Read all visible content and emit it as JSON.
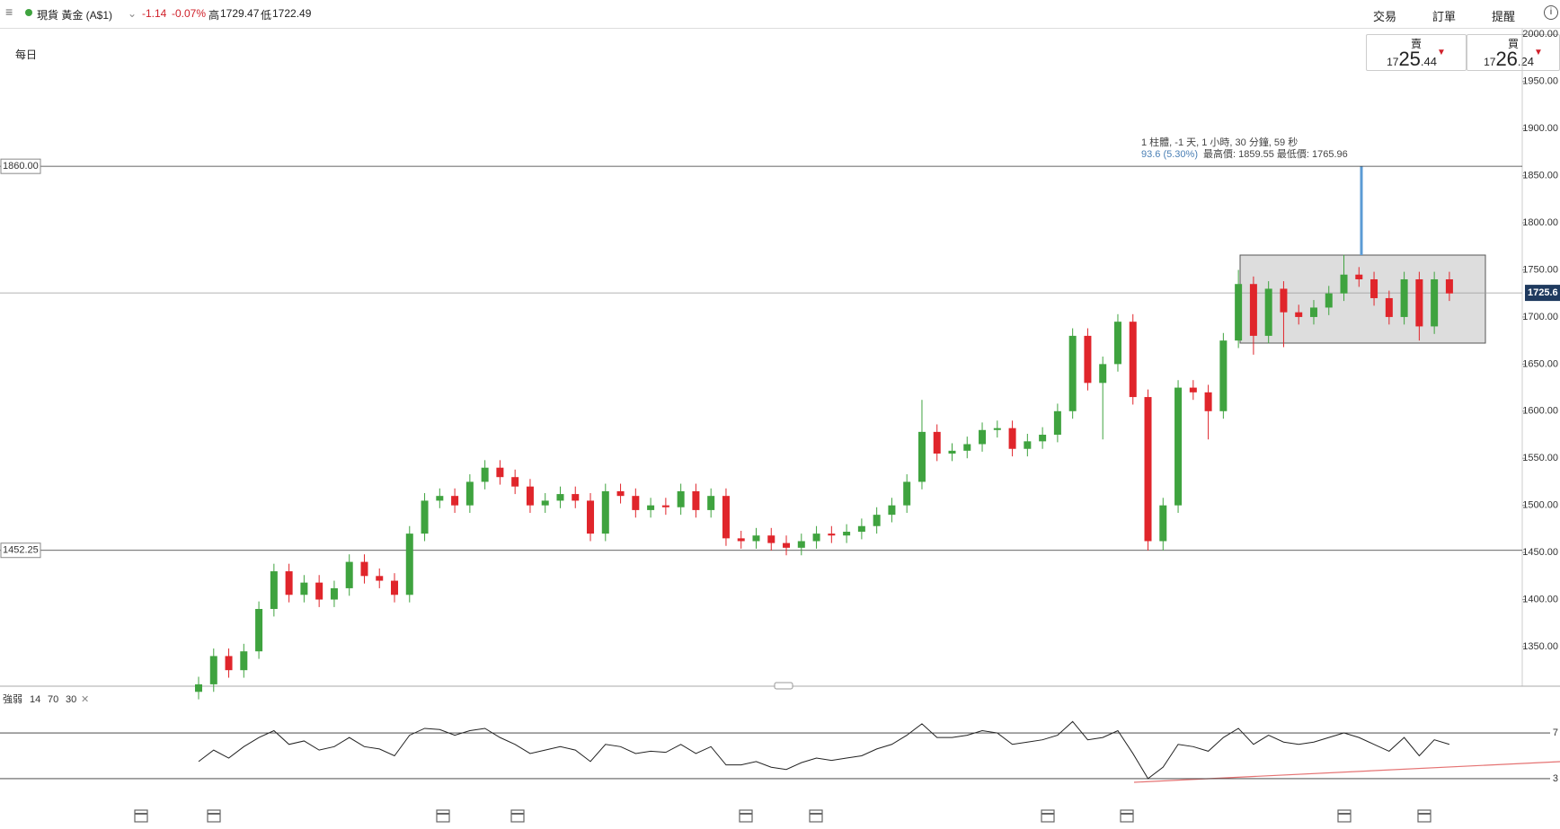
{
  "header": {
    "symbol": "現貨 黃金 (A$1)",
    "change": "-1.14",
    "change_pct": "-0.07%",
    "high_label": "高",
    "high": "1729.47",
    "low_label": "低",
    "low": "1722.49",
    "menu": [
      "交易",
      "訂單",
      "提醒"
    ]
  },
  "timeframe": "每日",
  "sell": {
    "label": "賣",
    "prefix": "17",
    "big": "25",
    "small": ".44"
  },
  "buy": {
    "label": "買",
    "prefix": "17",
    "big": "26",
    "small": ".24"
  },
  "chart_data": [
    {
      "type": "candlestick",
      "up_color": "#3fa33f",
      "down_color": "#e0252b",
      "open": [
        1302,
        1310,
        1340,
        1325,
        1345,
        1390,
        1430,
        1405,
        1418,
        1400,
        1412,
        1440,
        1425,
        1420,
        1405,
        1470,
        1505,
        1510,
        1500,
        1525,
        1540,
        1530,
        1520,
        1500,
        1505,
        1512,
        1505,
        1470,
        1515,
        1510,
        1495,
        1500,
        1498,
        1515,
        1495,
        1510,
        1465,
        1462,
        1468,
        1460,
        1455,
        1462,
        1470,
        1468,
        1472,
        1478,
        1490,
        1500,
        1525,
        1578,
        1555,
        1558,
        1565,
        1580,
        1582,
        1560,
        1568,
        1575,
        1600,
        1680,
        1630,
        1650,
        1695,
        1615,
        1462,
        1500,
        1625,
        1620,
        1600,
        1675,
        1735,
        1680,
        1730,
        1705,
        1700,
        1710,
        1725,
        1745,
        1740,
        1720,
        1700,
        1740,
        1690,
        1740
      ],
      "high": [
        1318,
        1348,
        1348,
        1353,
        1398,
        1438,
        1438,
        1426,
        1426,
        1420,
        1448,
        1448,
        1433,
        1428,
        1478,
        1513,
        1518,
        1518,
        1533,
        1548,
        1548,
        1538,
        1528,
        1513,
        1520,
        1520,
        1513,
        1523,
        1523,
        1518,
        1508,
        1508,
        1523,
        1523,
        1518,
        1518,
        1473,
        1476,
        1476,
        1468,
        1470,
        1478,
        1478,
        1480,
        1486,
        1498,
        1508,
        1533,
        1612,
        1586,
        1566,
        1573,
        1588,
        1590,
        1590,
        1576,
        1583,
        1608,
        1688,
        1688,
        1658,
        1703,
        1703,
        1623,
        1508,
        1633,
        1633,
        1628,
        1683,
        1750,
        1743,
        1738,
        1738,
        1713,
        1718,
        1733,
        1766,
        1753,
        1748,
        1728,
        1748,
        1748,
        1748,
        1748
      ],
      "low": [
        1294,
        1302,
        1317,
        1317,
        1337,
        1382,
        1397,
        1397,
        1392,
        1392,
        1404,
        1417,
        1412,
        1397,
        1397,
        1462,
        1497,
        1492,
        1492,
        1517,
        1522,
        1512,
        1492,
        1492,
        1497,
        1497,
        1462,
        1462,
        1502,
        1487,
        1487,
        1490,
        1490,
        1487,
        1487,
        1457,
        1454,
        1454,
        1452,
        1447,
        1447,
        1454,
        1460,
        1460,
        1464,
        1470,
        1482,
        1492,
        1517,
        1547,
        1547,
        1550,
        1557,
        1572,
        1552,
        1552,
        1560,
        1567,
        1592,
        1622,
        1570,
        1642,
        1607,
        1452,
        1452,
        1492,
        1612,
        1570,
        1592,
        1667,
        1660,
        1672,
        1668,
        1692,
        1692,
        1702,
        1717,
        1732,
        1712,
        1692,
        1692,
        1675,
        1682,
        1717
      ],
      "close": [
        1310,
        1340,
        1325,
        1345,
        1390,
        1430,
        1405,
        1418,
        1400,
        1412,
        1440,
        1425,
        1420,
        1405,
        1470,
        1505,
        1510,
        1500,
        1525,
        1540,
        1530,
        1520,
        1500,
        1505,
        1512,
        1505,
        1470,
        1515,
        1510,
        1495,
        1500,
        1498,
        1515,
        1495,
        1510,
        1465,
        1462,
        1468,
        1460,
        1455,
        1462,
        1470,
        1468,
        1472,
        1478,
        1490,
        1500,
        1525,
        1578,
        1555,
        1558,
        1565,
        1580,
        1582,
        1560,
        1568,
        1575,
        1600,
        1680,
        1630,
        1650,
        1695,
        1615,
        1462,
        1500,
        1625,
        1620,
        1600,
        1675,
        1735,
        1680,
        1730,
        1705,
        1700,
        1710,
        1725,
        1745,
        1740,
        1720,
        1700,
        1740,
        1690,
        1740,
        1725
      ],
      "ylim": [
        1308,
        2007
      ],
      "yticks": [
        {
          "value": 1350,
          "label": "1350.00"
        },
        {
          "value": 1400,
          "label": "1400.00"
        },
        {
          "value": 1450,
          "label": "1450.00"
        },
        {
          "value": 1500,
          "label": "1500.00"
        },
        {
          "value": 1550,
          "label": "1550.00"
        },
        {
          "value": 1600,
          "label": "1600.00"
        },
        {
          "value": 1650,
          "label": "1650.00"
        },
        {
          "value": 1700,
          "label": "1700.00"
        },
        {
          "value": 1750,
          "label": "1750.00"
        },
        {
          "value": 1800,
          "label": "1800.00"
        },
        {
          "value": 1850,
          "label": "1850.00"
        },
        {
          "value": 1900,
          "label": "1900.00"
        },
        {
          "value": 1950,
          "label": "1950.00"
        },
        {
          "value": 2000,
          "label": "2000.00"
        }
      ],
      "hlines": [
        {
          "value": 1860,
          "label": "1860.00"
        },
        {
          "value": 1452.25,
          "label": "1452.25"
        }
      ],
      "last_price": {
        "value": 1725.6,
        "label": "1725.6"
      },
      "measure": {
        "duration": "1 柱體, -1 天, 1 小時, 30 分鐘, 59 秒",
        "change": "93.6 (5.30%)",
        "range": "最高價: 1859.55 最低價: 1765.96"
      }
    },
    {
      "type": "line",
      "name": "強弱",
      "params": [
        "14",
        "70",
        "30"
      ],
      "color": "#222222",
      "values": [
        45,
        55,
        48,
        58,
        66,
        72,
        60,
        63,
        55,
        58,
        66,
        58,
        56,
        50,
        68,
        74,
        73,
        68,
        72,
        74,
        66,
        60,
        52,
        55,
        58,
        55,
        45,
        60,
        58,
        52,
        54,
        53,
        60,
        52,
        58,
        42,
        42,
        45,
        40,
        38,
        44,
        48,
        46,
        48,
        50,
        56,
        60,
        68,
        78,
        66,
        66,
        68,
        72,
        70,
        60,
        62,
        64,
        68,
        80,
        64,
        66,
        72,
        52,
        30,
        40,
        60,
        58,
        54,
        66,
        74,
        60,
        68,
        62,
        60,
        62,
        66,
        70,
        66,
        60,
        54,
        66,
        50,
        64,
        60
      ],
      "ylim": [
        15,
        107
      ],
      "levels": [
        {
          "value": 70,
          "label": "7"
        },
        {
          "value": 30,
          "label": "3"
        }
      ]
    }
  ]
}
